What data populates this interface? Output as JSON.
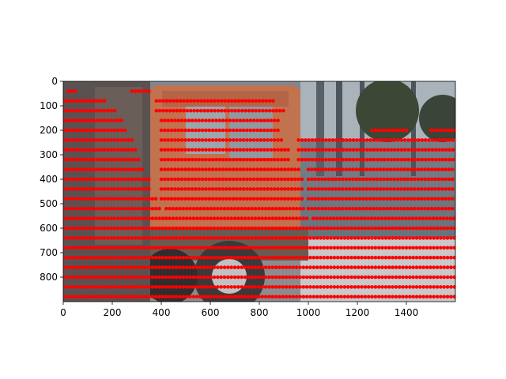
{
  "chart_data": {
    "type": "scatter",
    "title": "",
    "xlabel": "",
    "ylabel": "",
    "xlim": [
      0,
      1600
    ],
    "ylim": [
      900,
      0
    ],
    "y_axis_inverted": true,
    "grid": false,
    "legend": "none",
    "background": "photo of an orange truck parked in front of a grey building",
    "xticks": [
      0,
      200,
      400,
      600,
      800,
      1000,
      1200,
      1400
    ],
    "yticks": [
      0,
      100,
      200,
      300,
      400,
      500,
      600,
      700,
      800
    ],
    "xtick_labels": [
      "0",
      "200",
      "400",
      "600",
      "800",
      "1000",
      "1200",
      "1400"
    ],
    "ytick_labels": [
      "0",
      "100",
      "200",
      "300",
      "400",
      "500",
      "600",
      "700",
      "800"
    ],
    "series": [
      {
        "marker": "dot",
        "color": "#ff0000",
        "rows": [
          {
            "y": 40,
            "segments": [
              [
                280,
                360
              ],
              [
                20,
                60
              ]
            ]
          },
          {
            "y": 80,
            "segments": [
              [
                0,
                180
              ],
              [
                380,
                860
              ]
            ]
          },
          {
            "y": 120,
            "segments": [
              [
                0,
                220
              ],
              [
                380,
                900
              ]
            ]
          },
          {
            "y": 160,
            "segments": [
              [
                0,
                240
              ],
              [
                400,
                880
              ]
            ]
          },
          {
            "y": 200,
            "segments": [
              [
                0,
                260
              ],
              [
                400,
                880
              ],
              [
                1260,
                1400
              ],
              [
                1500,
                1600
              ]
            ]
          },
          {
            "y": 240,
            "segments": [
              [
                0,
                290
              ],
              [
                400,
                900
              ],
              [
                960,
                1600
              ]
            ]
          },
          {
            "y": 280,
            "segments": [
              [
                0,
                300
              ],
              [
                400,
                920
              ],
              [
                960,
                1600
              ]
            ]
          },
          {
            "y": 320,
            "segments": [
              [
                0,
                320
              ],
              [
                400,
                920
              ],
              [
                960,
                1600
              ]
            ]
          },
          {
            "y": 360,
            "segments": [
              [
                0,
                330
              ],
              [
                400,
                960
              ],
              [
                1000,
                1600
              ]
            ]
          },
          {
            "y": 400,
            "segments": [
              [
                0,
                350
              ],
              [
                400,
                980
              ],
              [
                1000,
                1600
              ]
            ]
          },
          {
            "y": 440,
            "segments": [
              [
                0,
                360
              ],
              [
                400,
                980
              ],
              [
                1000,
                1600
              ]
            ]
          },
          {
            "y": 480,
            "segments": [
              [
                0,
                380
              ],
              [
                400,
                980
              ],
              [
                1000,
                1600
              ]
            ]
          },
          {
            "y": 520,
            "segments": [
              [
                0,
                400
              ],
              [
                420,
                980
              ],
              [
                1000,
                1600
              ]
            ]
          },
          {
            "y": 560,
            "segments": [
              [
                0,
                420
              ],
              [
                420,
                1000
              ],
              [
                1020,
                1600
              ]
            ]
          },
          {
            "y": 600,
            "segments": [
              [
                0,
                1600
              ]
            ]
          },
          {
            "y": 640,
            "segments": [
              [
                0,
                1600
              ]
            ]
          },
          {
            "y": 680,
            "segments": [
              [
                0,
                1600
              ]
            ]
          },
          {
            "y": 720,
            "segments": [
              [
                0,
                1600
              ]
            ]
          },
          {
            "y": 760,
            "segments": [
              [
                0,
                1600
              ]
            ]
          },
          {
            "y": 800,
            "segments": [
              [
                0,
                1600
              ]
            ]
          },
          {
            "y": 840,
            "segments": [
              [
                0,
                1600
              ]
            ]
          },
          {
            "y": 880,
            "segments": [
              [
                0,
                1600
              ]
            ]
          }
        ]
      }
    ]
  },
  "colors": {
    "marker": "#ff0000",
    "truck": "#c1734f",
    "sky_building": "#8f9aa3",
    "road": "#c7c9cb"
  }
}
